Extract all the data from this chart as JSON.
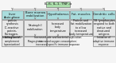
{
  "title_box": {
    "text": "IL-6, IL-1, TNF-α",
    "color": "#aaddaa",
    "border": "#888888"
  },
  "columns": [
    {
      "header": "Liver",
      "header_color": "#aadddd",
      "body1": "Acute-phase\nprotein\nsynthesis\n(C-reactive\nprotein,\nfibrinogen,\nbinding lectin)",
      "body1_color": "#e8e8e8",
      "body2": "Activation of\ncomplement\n(opsonization)",
      "body2_color": "#e8e8e8"
    },
    {
      "header": "Bone marrow\nmobilization",
      "header_color": "#aadddd",
      "body1": "Neutrophil\nmobilization",
      "body1_color": "#e8e8e8",
      "body2": "Phagocytosis",
      "body2_color": "#e8e8e8"
    },
    {
      "header": "Hypothalamus",
      "header_color": "#aadddd",
      "body1": "Increased\nbody\ntemperature",
      "body1_color": "#e8e8e8",
      "body2": "Increased rate and bacterial replication;\nincreased oxygen consumption;\nincreased specific immune response",
      "body2_color": "#e8e8e8"
    },
    {
      "header": "Fat, muscles",
      "header_color": "#aadddd",
      "body1": "Protein and\nfat mobilization\nto allow\nincreased\nbody temperature",
      "body1_color": "#e8e8e8",
      "body2": null,
      "body2_color": "#e8e8e8"
    },
    {
      "header": "Dendritic cells",
      "header_color": "#aadddd",
      "body1": "T/B lymphocytes\nrespond to both\nnative and\ndenatured\nantigens",
      "body1_color": "#e8e8e8",
      "body2": "Initiation of\nadaptive immune\nresponse",
      "body2_color": "#e8e8e8"
    }
  ],
  "bg_color": "#f5f5f5",
  "line_color": "#888888",
  "arrow_color": "#888888"
}
